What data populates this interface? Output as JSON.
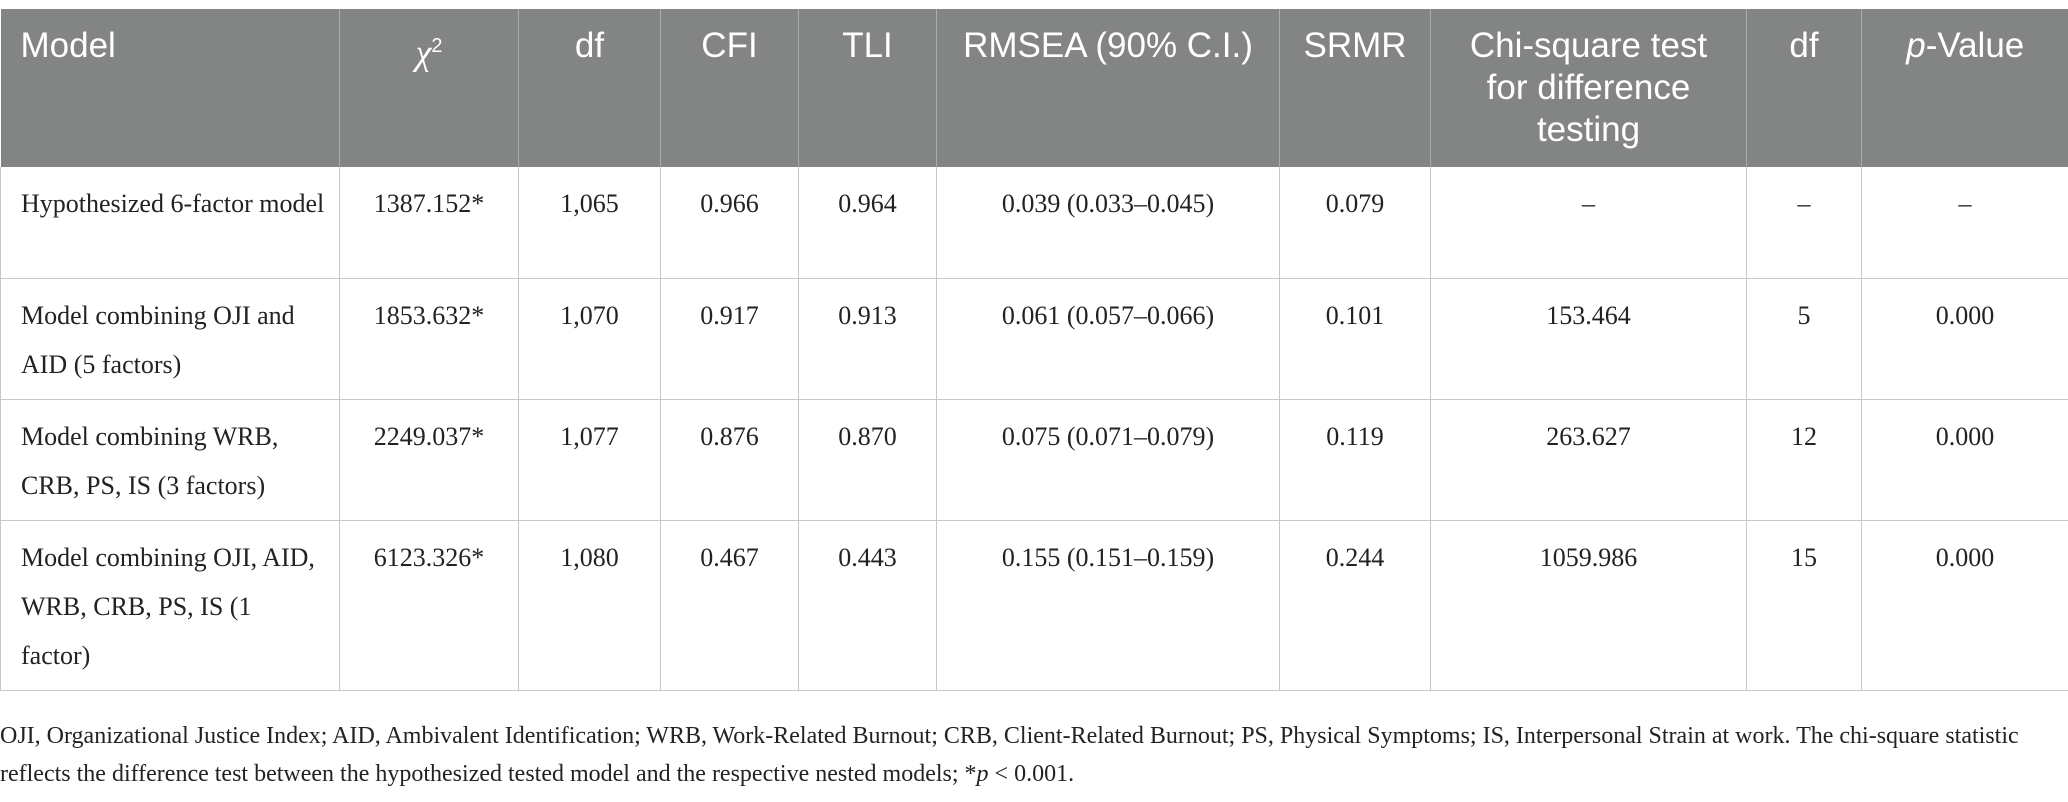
{
  "table": {
    "headers": {
      "model": "Model",
      "chi_symbol": "χ",
      "chi_sup": "2",
      "df": "df",
      "cfi": "CFI",
      "tli": "TLI",
      "rmsea": "RMSEA (90% C.I.)",
      "srmr": "SRMR",
      "chisq_diff": "Chi-square test for difference testing",
      "df2": "df",
      "p_italic": "p",
      "p_rest": "-Value"
    },
    "rows": [
      {
        "model": "Hypothesized 6-factor model",
        "chi2": "1387.152*",
        "df": "1,065",
        "cfi": "0.966",
        "tli": "0.964",
        "rmsea": "0.039 (0.033–0.045)",
        "srmr": "0.079",
        "chisq_diff": "–",
        "df2": "–",
        "p": "–"
      },
      {
        "model": "Model combining OJI and AID (5 factors)",
        "chi2": "1853.632*",
        "df": "1,070",
        "cfi": "0.917",
        "tli": "0.913",
        "rmsea": "0.061 (0.057–0.066)",
        "srmr": "0.101",
        "chisq_diff": "153.464",
        "df2": "5",
        "p": "0.000"
      },
      {
        "model": "Model combining WRB, CRB, PS, IS (3 factors)",
        "chi2": "2249.037*",
        "df": "1,077",
        "cfi": "0.876",
        "tli": "0.870",
        "rmsea": "0.075 (0.071–0.079)",
        "srmr": "0.119",
        "chisq_diff": "263.627",
        "df2": "12",
        "p": "0.000"
      },
      {
        "model": "Model combining OJI, AID, WRB, CRB, PS, IS (1 factor)",
        "chi2": "6123.326*",
        "df": "1,080",
        "cfi": "0.467",
        "tli": "0.443",
        "rmsea": "0.155 (0.151–0.159)",
        "srmr": "0.244",
        "chisq_diff": "1059.986",
        "df2": "15",
        "p": "0.000"
      }
    ]
  },
  "footnote": {
    "text": "OJI, Organizational Justice Index; AID, Ambivalent Identification; WRB, Work-Related Burnout; CRB, Client-Related Burnout; PS, Physical Symptoms; IS, Interpersonal Strain at work. The chi-square statistic reflects the difference test between the hypothesized tested model and the respective nested models; *",
    "p_italic": "p",
    "tail": " < 0.001."
  }
}
